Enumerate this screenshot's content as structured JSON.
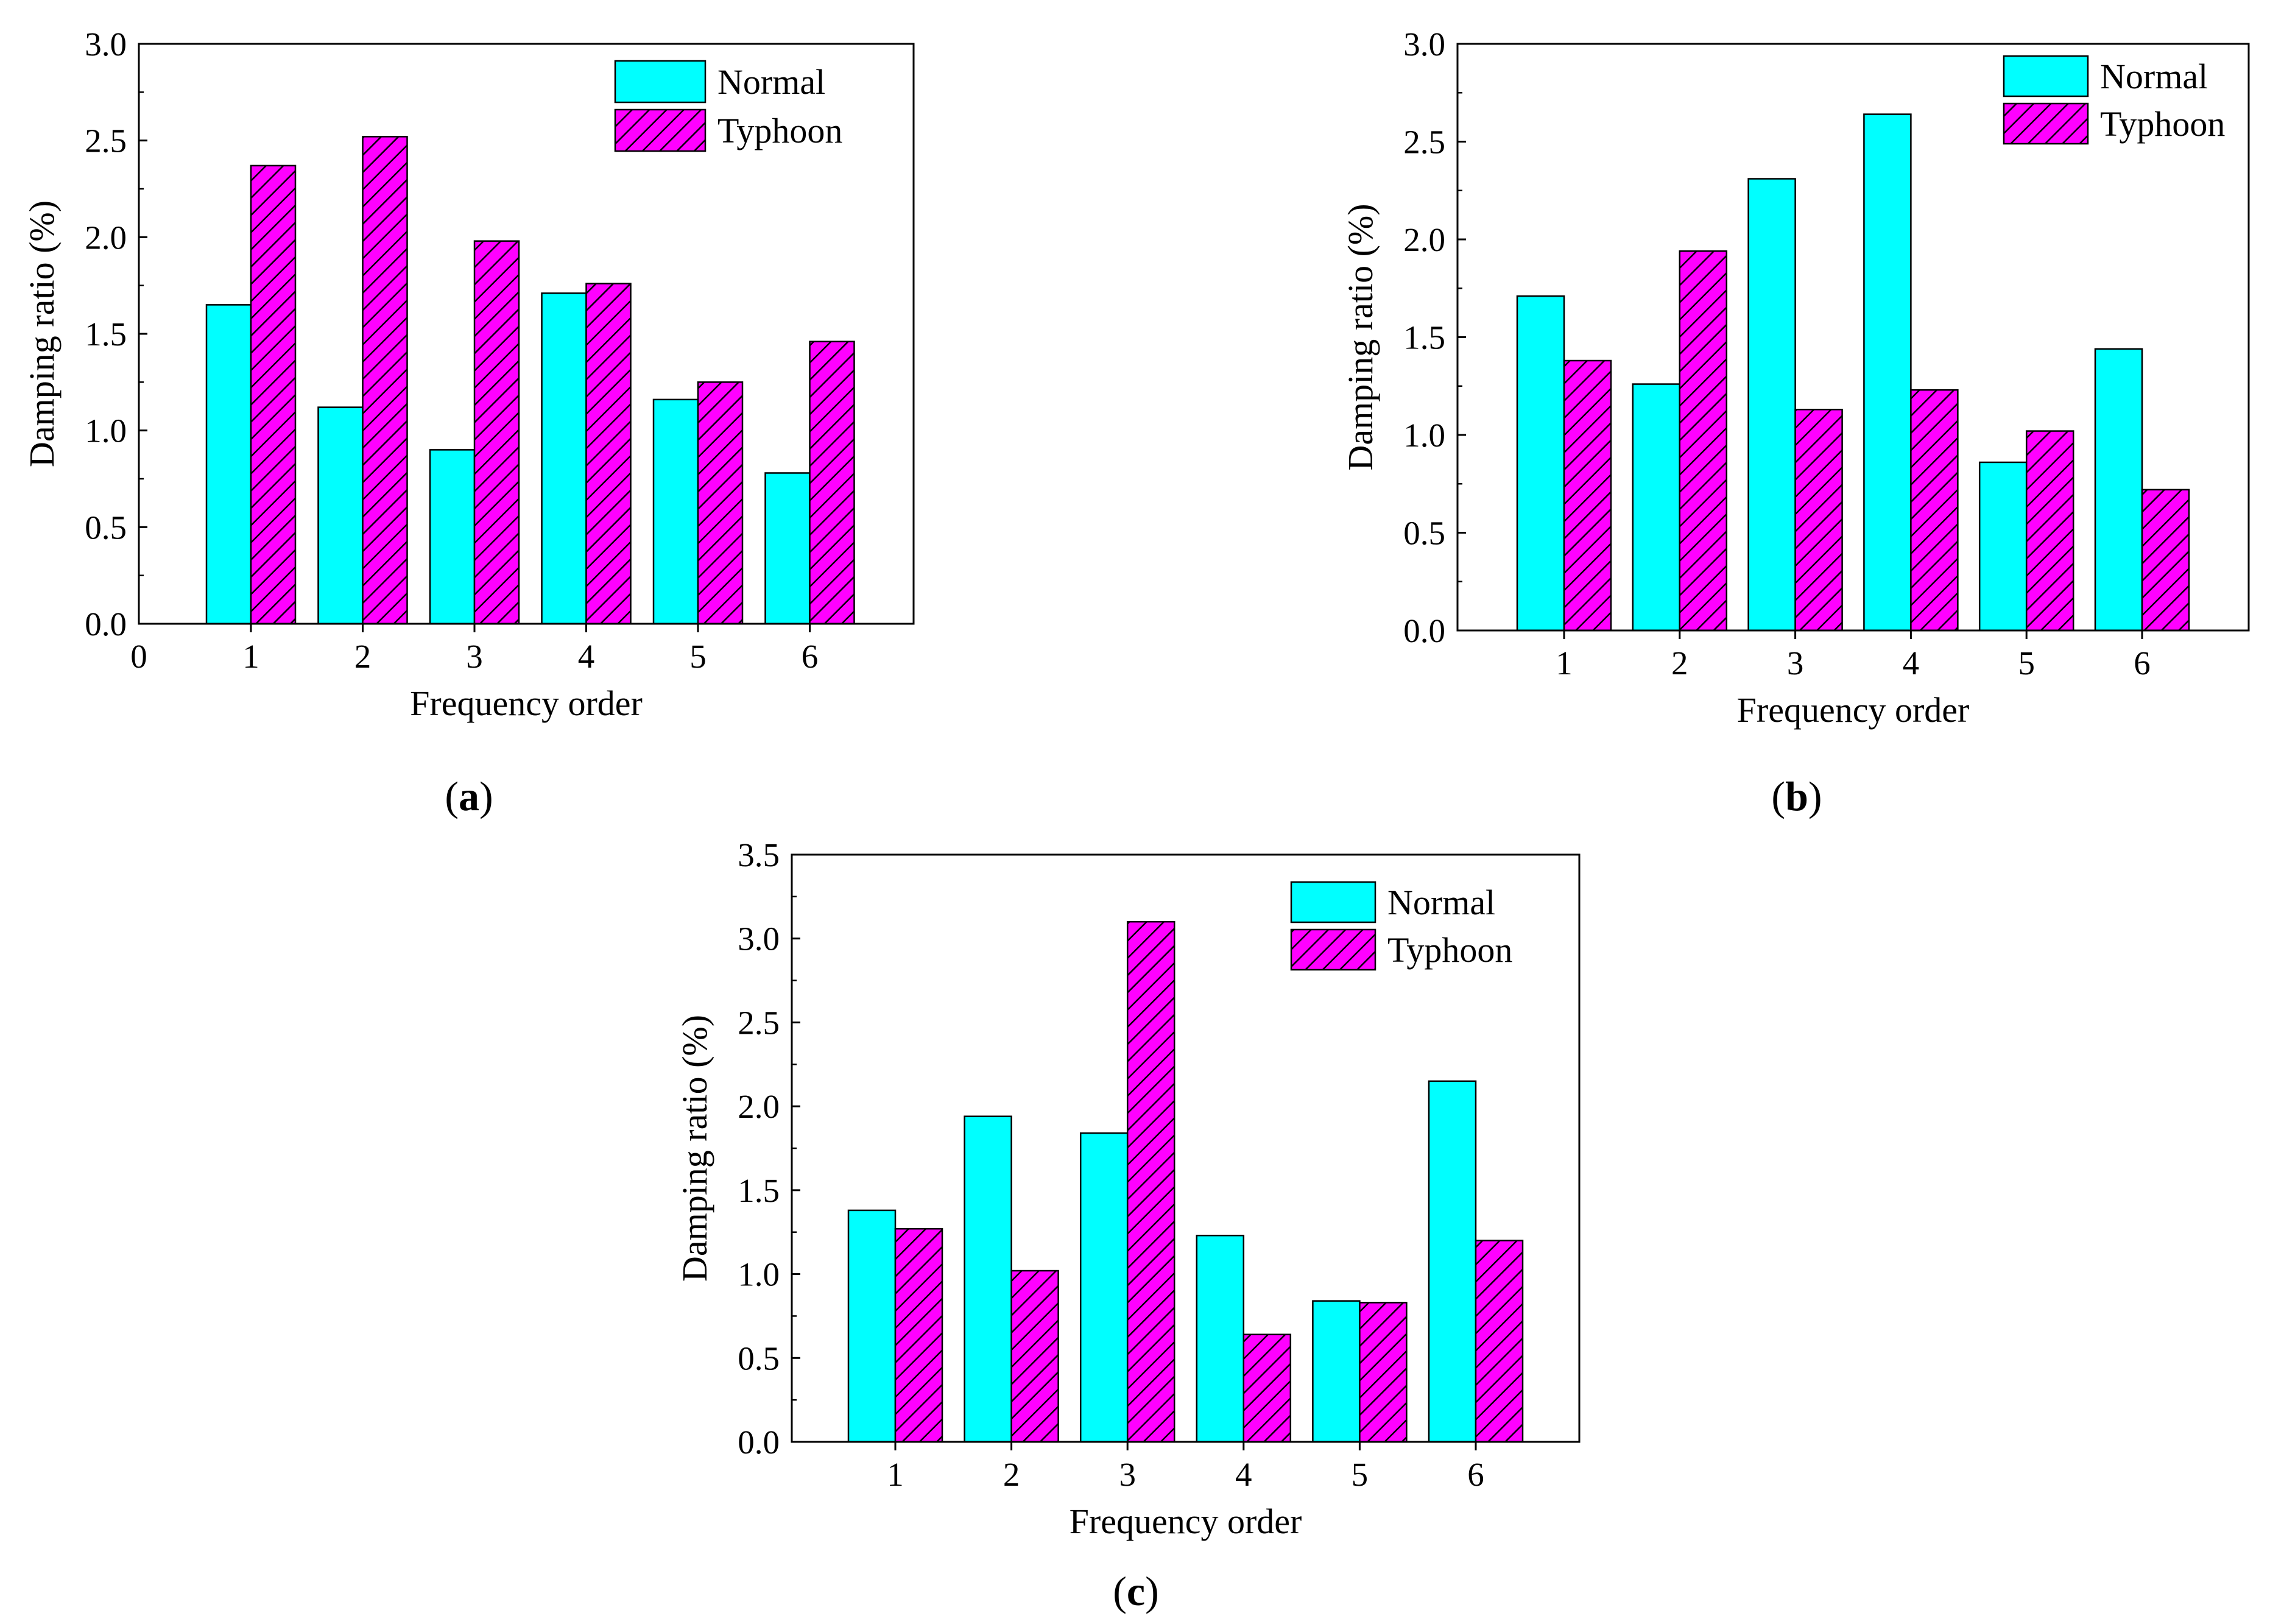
{
  "chart_data": [
    {
      "type": "bar",
      "panel_label": "a",
      "categories": [
        "1",
        "2",
        "3",
        "4",
        "5",
        "6"
      ],
      "x_ticks": [
        "0",
        "1",
        "2",
        "3",
        "4",
        "5",
        "6"
      ],
      "series": [
        {
          "name": "Normal",
          "values": [
            1.65,
            1.12,
            0.9,
            1.71,
            1.16,
            0.78
          ]
        },
        {
          "name": "Typhoon",
          "values": [
            2.37,
            2.52,
            1.98,
            1.76,
            1.25,
            1.46
          ]
        }
      ],
      "xlabel": "Frequency order",
      "ylabel": "Damping ratio (%)",
      "ylim": [
        0,
        3.0
      ],
      "y_ticks": [
        "0.0",
        "0.5",
        "1.0",
        "1.5",
        "2.0",
        "2.5",
        "3.0"
      ],
      "legend_position": "top-right"
    },
    {
      "type": "bar",
      "panel_label": "b",
      "categories": [
        "1",
        "2",
        "3",
        "4",
        "5",
        "6"
      ],
      "x_ticks": [
        "1",
        "2",
        "3",
        "4",
        "5",
        "6"
      ],
      "series": [
        {
          "name": "Normal",
          "values": [
            1.71,
            1.26,
            2.31,
            2.64,
            0.86,
            1.44
          ]
        },
        {
          "name": "Typhoon",
          "values": [
            1.38,
            1.94,
            1.13,
            1.23,
            1.02,
            0.72
          ]
        }
      ],
      "xlabel": "Frequency order",
      "ylabel": "Damping ratio (%)",
      "ylim": [
        0,
        3.0
      ],
      "y_ticks": [
        "0.0",
        "0.5",
        "1.0",
        "1.5",
        "2.0",
        "2.5",
        "3.0"
      ],
      "legend_position": "top-right"
    },
    {
      "type": "bar",
      "panel_label": "c",
      "categories": [
        "1",
        "2",
        "3",
        "4",
        "5",
        "6"
      ],
      "x_ticks": [
        "1",
        "2",
        "3",
        "4",
        "5",
        "6"
      ],
      "series": [
        {
          "name": "Normal",
          "values": [
            1.38,
            1.94,
            1.84,
            1.23,
            0.84,
            2.15
          ]
        },
        {
          "name": "Typhoon",
          "values": [
            1.27,
            1.02,
            3.1,
            0.64,
            0.83,
            1.2
          ]
        }
      ],
      "xlabel": "Frequency order",
      "ylabel": "Damping ratio (%)",
      "ylim": [
        0,
        3.5
      ],
      "y_ticks": [
        "0.0",
        "0.5",
        "1.0",
        "1.5",
        "2.0",
        "2.5",
        "3.0",
        "3.5"
      ],
      "legend_position": "top-right"
    }
  ],
  "colors": {
    "normal_fill": "#00FFFF",
    "typhoon_fill": "#FF00FF",
    "hatch_stroke": "#000000",
    "axis": "#000000"
  }
}
